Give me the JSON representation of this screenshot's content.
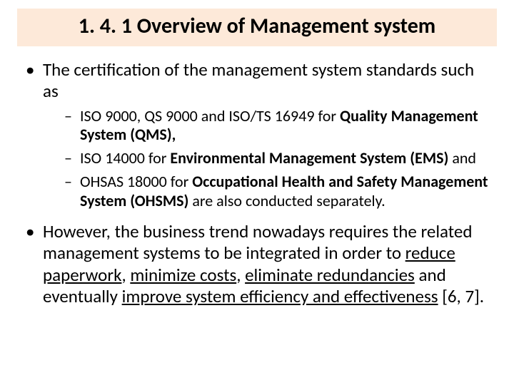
{
  "colors": {
    "title_band_bg": "#fde9d9",
    "page_bg": "#ffffff",
    "text": "#000000"
  },
  "typography": {
    "title_fontsize_pt": 30,
    "level1_fontsize_pt": 25,
    "level2_fontsize_pt": 22,
    "font_family": "Calibri",
    "title_weight": "bold"
  },
  "title": "1. 4. 1 Overview of Management system",
  "bullets": [
    {
      "text": "The certification of the management system standards such as",
      "sub": [
        {
          "pre": "ISO 9000, QS 9000 and ISO/TS 16949 for ",
          "bold": "Quality Management System (QMS),",
          "post": ""
        },
        {
          "pre": "ISO 14000 for ",
          "bold": "Environmental Management System (EMS)",
          "post": " and"
        },
        {
          "pre": "OHSAS 18000 for ",
          "bold": "Occupational Health and Safety Management System (OHSMS)",
          "post": " are also conducted separately."
        }
      ]
    },
    {
      "second": {
        "p1": "However, the business trend nowadays requires the related management systems to be integrated in order to ",
        "u1": "reduce paperwork",
        "c1": ", ",
        "u2": "minimize costs",
        "c2": ", ",
        "u3": "eliminate redundancies",
        "c3": " and eventually ",
        "u4": "improve system efficiency and effectiveness",
        "c4": " [6, 7]."
      }
    }
  ]
}
